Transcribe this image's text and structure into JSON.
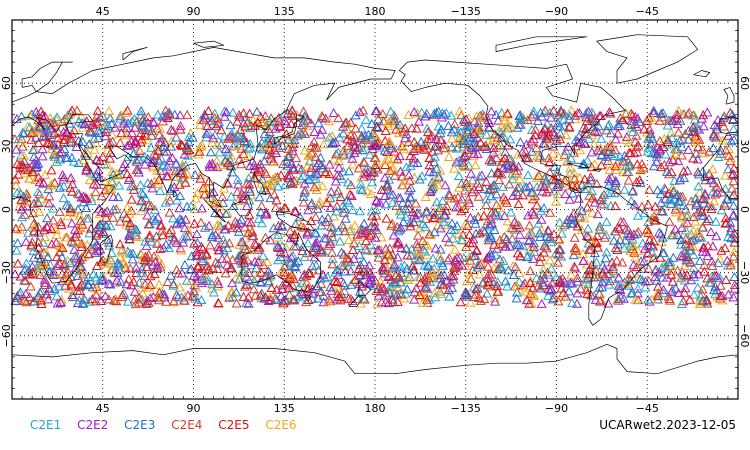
{
  "map": {
    "projection": "equirectangular",
    "lon_range": [
      0,
      360
    ],
    "lat_range": [
      -90,
      90
    ],
    "grid": "dotted",
    "lon_ticks": [
      {
        "value": 45,
        "label": "45"
      },
      {
        "value": 90,
        "label": "90"
      },
      {
        "value": 135,
        "label": "135"
      },
      {
        "value": 180,
        "label": "180"
      },
      {
        "value": 225,
        "label": "−135"
      },
      {
        "value": 270,
        "label": "−90"
      },
      {
        "value": 315,
        "label": "−45"
      }
    ],
    "lat_ticks": [
      {
        "value": 60,
        "label": "60"
      },
      {
        "value": 30,
        "label": "30"
      },
      {
        "value": 0,
        "label": "0"
      },
      {
        "value": -30,
        "label": "−30"
      },
      {
        "value": -60,
        "label": "−60"
      }
    ],
    "marker": "triangle",
    "occultation_lat_band": [
      -45,
      47
    ]
  },
  "legend": [
    {
      "label": "C2E1",
      "color": "#1fa6d6"
    },
    {
      "label": "C2E2",
      "color": "#a020c0"
    },
    {
      "label": "C2E3",
      "color": "#1e6fd0"
    },
    {
      "label": "C2E4",
      "color": "#d0402a"
    },
    {
      "label": "C2E5",
      "color": "#e01010"
    },
    {
      "label": "C2E6",
      "color": "#f0a818"
    }
  ],
  "caption": "UCARwet2.2023-12-05"
}
